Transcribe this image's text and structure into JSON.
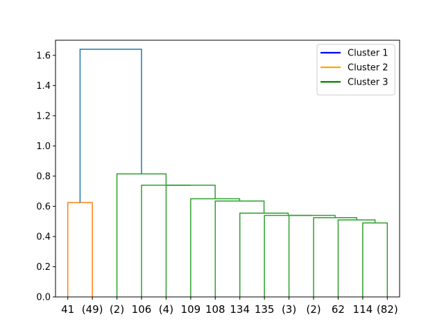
{
  "chart_data": {
    "type": "dendrogram",
    "ylim": [
      0.0,
      1.7
    ],
    "yticks": [
      "0.0",
      "0.2",
      "0.4",
      "0.6",
      "0.8",
      "1.0",
      "1.2",
      "1.4",
      "1.6"
    ],
    "leaf_labels": [
      "41",
      "(49)",
      "(2)",
      "106",
      "(4)",
      "109",
      "108",
      "134",
      "135",
      "(3)",
      "(2)",
      "62",
      "114",
      "(82)"
    ],
    "links": [
      {
        "left": 0,
        "right": 1,
        "height": 0.625,
        "cluster": "Cluster 2"
      },
      {
        "left": 12,
        "right": 13,
        "height": 0.49,
        "cluster": "Cluster 3"
      },
      {
        "left": 11,
        "right": "n2",
        "height": 0.51,
        "cluster": "Cluster 3"
      },
      {
        "left": 10,
        "right": "n3",
        "height": 0.525,
        "cluster": "Cluster 3"
      },
      {
        "left": 9,
        "right": "n4",
        "height": 0.54,
        "cluster": "Cluster 3"
      },
      {
        "left": 8,
        "right": "n5",
        "height": 0.54,
        "cluster": "Cluster 3"
      },
      {
        "left": 7,
        "right": "n6",
        "height": 0.555,
        "cluster": "Cluster 3"
      },
      {
        "left": 6,
        "right": "n7",
        "height": 0.635,
        "cluster": "Cluster 3"
      },
      {
        "left": 5,
        "right": "n8",
        "height": 0.65,
        "cluster": "Cluster 3"
      },
      {
        "left": 4,
        "right": "n9",
        "height": 0.74,
        "cluster": "Cluster 3"
      },
      {
        "left": 3,
        "right": "n10",
        "height": 0.74,
        "cluster": "Cluster 3"
      },
      {
        "left": 2,
        "right": "n11",
        "height": 0.815,
        "cluster": "Cluster 3"
      },
      {
        "left": "n1",
        "right": "n12",
        "height": 1.64,
        "cluster": "Cluster 1"
      }
    ],
    "link_colors": {
      "Cluster 1": "#1f77b4",
      "Cluster 2": "#ff7f0e",
      "Cluster 3": "#2ca02c"
    },
    "legend": {
      "position": "top-right",
      "items": [
        {
          "label": "Cluster 1",
          "color": "#0000ff"
        },
        {
          "label": "Cluster 2",
          "color": "#ffa500"
        },
        {
          "label": "Cluster 3",
          "color": "#008000"
        }
      ]
    }
  }
}
